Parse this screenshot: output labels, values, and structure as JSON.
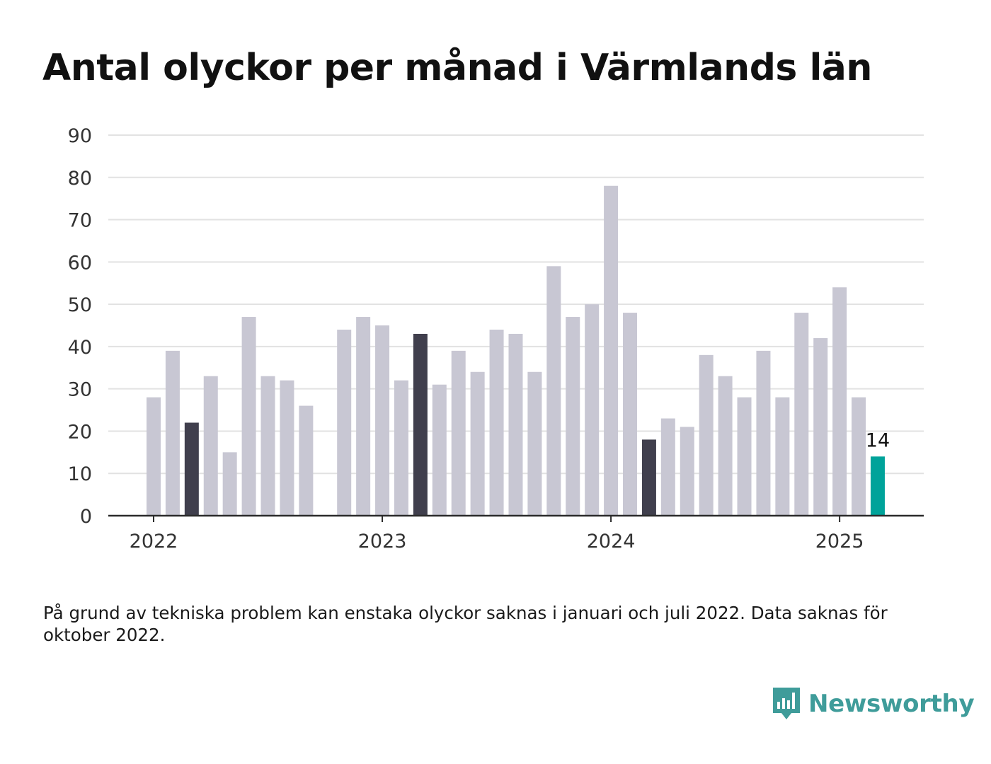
{
  "title": "Antal olyckor per månad i Värmlands län",
  "note": "På grund av tekniska problem kan enstaka olyckor saknas i januari och juli 2022. Data saknas för oktober 2022.",
  "brand": {
    "name": "Newsworthy",
    "icon": "newsworthy-logo-icon"
  },
  "colors": {
    "default": "#c8c7d3",
    "march": "#403f4d",
    "latest": "#00a39a",
    "grid": "#e2e2e2",
    "axis": "#2b2b2b"
  },
  "chart_data": {
    "type": "bar",
    "title": "Antal olyckor per månad i Värmlands län",
    "xlabel": "",
    "ylabel": "",
    "ylim": [
      0,
      90
    ],
    "yticks": [
      0,
      10,
      20,
      30,
      40,
      50,
      60,
      70,
      80,
      90
    ],
    "xticks": [
      "2022",
      "2023",
      "2024",
      "2025"
    ],
    "grid": true,
    "categories": [
      "2022-01",
      "2022-02",
      "2022-03",
      "2022-04",
      "2022-05",
      "2022-06",
      "2022-07",
      "2022-08",
      "2022-09",
      "2022-10",
      "2022-11",
      "2022-12",
      "2023-01",
      "2023-02",
      "2023-03",
      "2023-04",
      "2023-05",
      "2023-06",
      "2023-07",
      "2023-08",
      "2023-09",
      "2023-10",
      "2023-11",
      "2023-12",
      "2024-01",
      "2024-02",
      "2024-03",
      "2024-04",
      "2024-05",
      "2024-06",
      "2024-07",
      "2024-08",
      "2024-09",
      "2024-10",
      "2024-11",
      "2024-12",
      "2025-01",
      "2025-02",
      "2025-03"
    ],
    "values": [
      28,
      39,
      22,
      33,
      15,
      47,
      33,
      32,
      26,
      null,
      44,
      47,
      45,
      32,
      43,
      31,
      39,
      34,
      44,
      43,
      34,
      59,
      47,
      50,
      78,
      48,
      18,
      23,
      21,
      38,
      33,
      28,
      39,
      28,
      48,
      42,
      54,
      28,
      14
    ],
    "highlight": {
      "dark": [
        "2022-03",
        "2023-03",
        "2024-03"
      ],
      "latest": "2025-03"
    },
    "data_labels": [
      {
        "category": "2025-03",
        "text": "14"
      }
    ]
  }
}
